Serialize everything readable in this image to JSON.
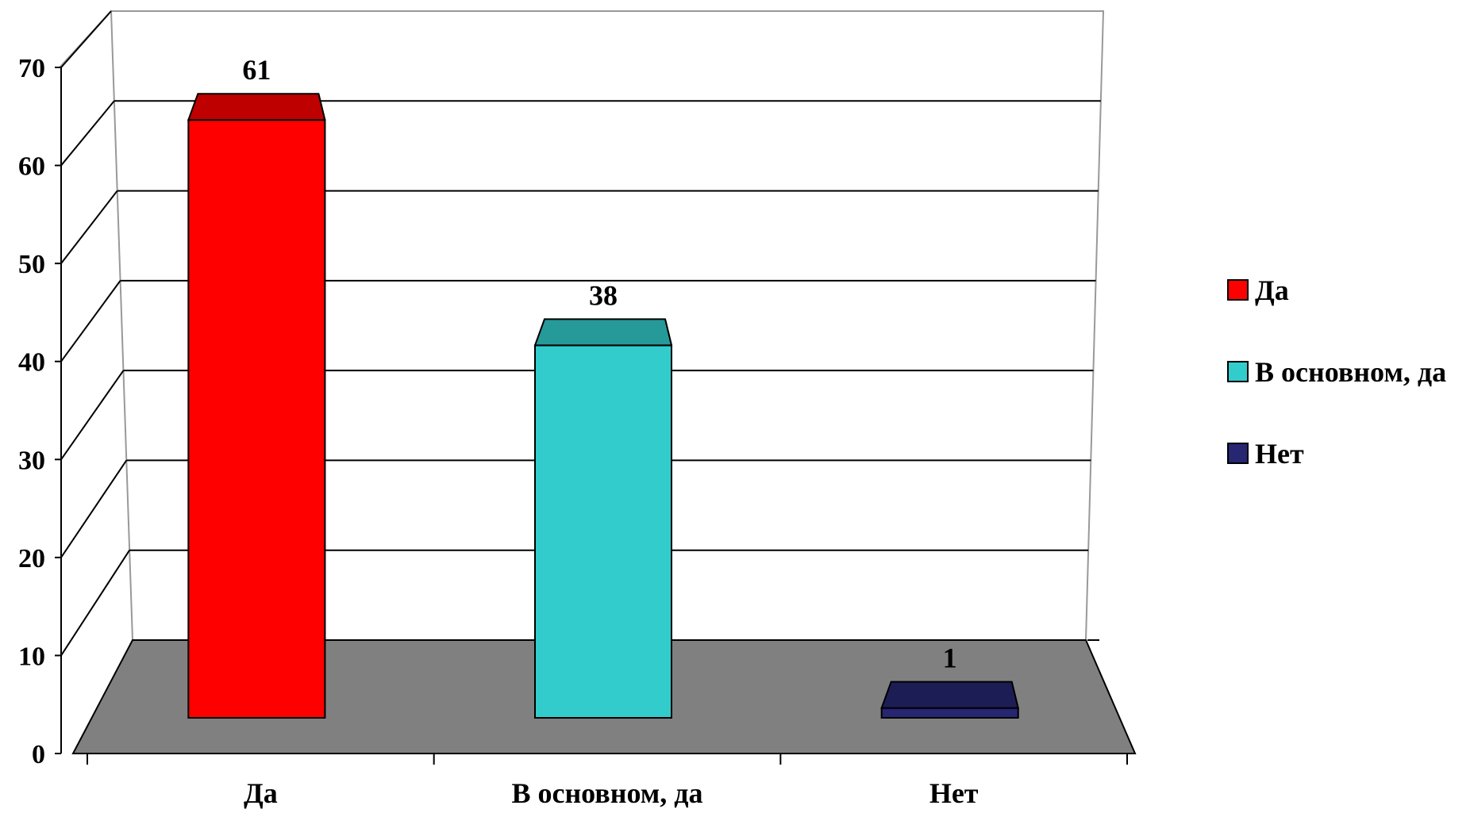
{
  "chart_data": {
    "type": "bar",
    "title": "",
    "xlabel": "",
    "ylabel": "",
    "ylim": [
      0,
      70
    ],
    "yticks": [
      0,
      10,
      20,
      30,
      40,
      50,
      60,
      70
    ],
    "categories": [
      "Да",
      "В основном, да",
      "Нет"
    ],
    "values": [
      61,
      38,
      1
    ],
    "data_labels": [
      "61",
      "38",
      "1"
    ],
    "grid": true,
    "three_d": true,
    "legend": {
      "placement": "right",
      "entries": [
        "Да",
        "В основном, да",
        "Нет"
      ]
    },
    "colors": {
      "bars": [
        "#ff0000",
        "#33cccc",
        "#262673"
      ],
      "floor": "#808080"
    }
  }
}
